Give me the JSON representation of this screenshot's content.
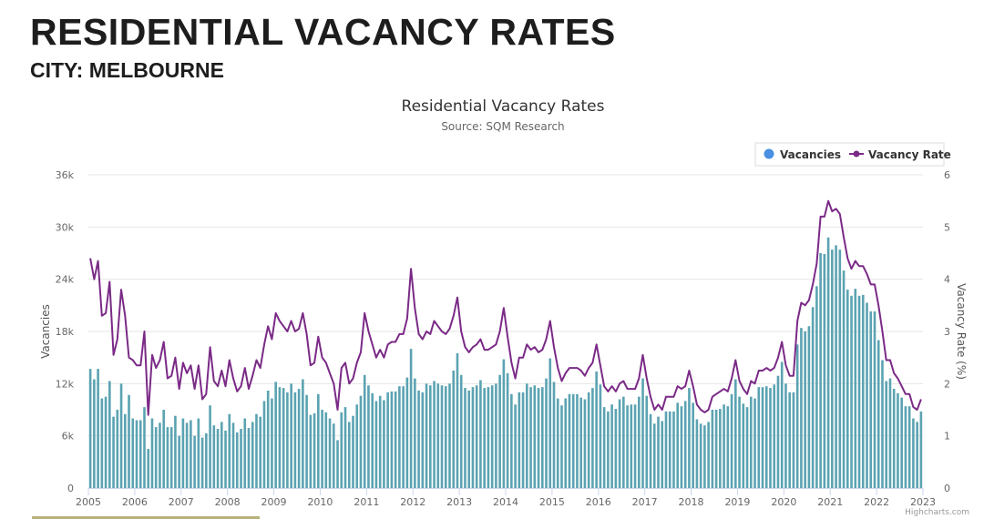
{
  "header": {
    "title": "RESIDENTIAL VACANCY RATES",
    "subtitle": "CITY: MELBOURNE"
  },
  "chart_data": {
    "type": "bar+line",
    "title": "Residential Vacancy Rates",
    "subtitle": "Source: SQM Research",
    "xlabel": "",
    "ylabel": "Vacancies",
    "y2label": "Vacancy Rate (%)",
    "xlim": [
      2005,
      2023
    ],
    "ylim": [
      0,
      36000
    ],
    "y2lim": [
      0,
      6
    ],
    "x_ticks": [
      "2005",
      "2006",
      "2007",
      "2008",
      "2009",
      "2010",
      "2011",
      "2012",
      "2013",
      "2014",
      "2015",
      "2016",
      "2017",
      "2018",
      "2019",
      "2020",
      "2021",
      "2022",
      "2023"
    ],
    "y_ticks": [
      "0",
      "6k",
      "12k",
      "18k",
      "24k",
      "30k",
      "36k"
    ],
    "y2_ticks": [
      "0",
      "1",
      "2",
      "3",
      "4",
      "5",
      "6"
    ],
    "start": "2005-01",
    "frequency": "monthly",
    "grid": true,
    "legend": {
      "placement": "top-right",
      "items": [
        "Vacancies",
        "Vacancy Rate"
      ]
    },
    "credits": "Highcharts.com",
    "colors": {
      "bars": "#5ba3b2",
      "line": "#7a2a86",
      "legend_dot": "#4a90e2"
    },
    "series": [
      {
        "name": "Vacancies",
        "type": "bar",
        "unit": "thousands",
        "values": [
          13.7,
          12.5,
          13.7,
          10.3,
          10.5,
          12.3,
          8.2,
          9,
          12,
          8.5,
          10.7,
          8,
          7.8,
          7.8,
          9.3,
          4.5,
          8,
          7,
          7.5,
          9,
          7,
          7,
          8.3,
          6,
          8,
          7.5,
          7.8,
          6,
          8,
          5.8,
          6.3,
          9.5,
          7.2,
          6.8,
          7.6,
          6.6,
          8.5,
          7.5,
          6.4,
          6.8,
          8,
          6.9,
          7.6,
          8.5,
          8.2,
          10,
          11.2,
          10.3,
          12.2,
          11.6,
          11.5,
          11,
          12,
          11,
          11.4,
          12.5,
          10.7,
          8.4,
          8.6,
          10.8,
          9,
          8.7,
          8,
          7.4,
          5.5,
          8.7,
          9.3,
          7.6,
          8.3,
          9.6,
          10.6,
          13,
          11.8,
          10.9,
          10,
          10.6,
          10.1,
          11,
          11.1,
          11.1,
          11.7,
          11.7,
          12.7,
          16,
          12.6,
          11.2,
          11,
          12,
          11.8,
          12.3,
          12,
          11.8,
          11.7,
          12,
          13.5,
          15.5,
          13,
          11.5,
          11.2,
          11.6,
          11.8,
          12.4,
          11.5,
          11.6,
          11.8,
          12,
          13,
          14.8,
          13.2,
          10.8,
          9.6,
          11,
          11,
          12,
          11.6,
          11.8,
          11.5,
          11.6,
          12.6,
          14.9,
          12.2,
          10.3,
          9.5,
          10.3,
          10.8,
          10.8,
          10.8,
          10.4,
          10.2,
          11,
          11.5,
          13.4,
          11.9,
          9.3,
          8.8,
          9.6,
          9.1,
          10.2,
          10.5,
          9.5,
          9.6,
          9.6,
          10.5,
          12.6,
          10.6,
          8.5,
          7.4,
          8.2,
          7.7,
          8.8,
          8.8,
          8.8,
          9.8,
          9.4,
          10,
          11.5,
          9.8,
          7.9,
          7.4,
          7.2,
          7.6,
          9,
          9,
          9.1,
          9.6,
          9.4,
          10.8,
          12.5,
          10.5,
          9.7,
          9.3,
          10.5,
          10.3,
          11.6,
          11.6,
          11.7,
          11.5,
          11.9,
          12.9,
          14.5,
          12,
          11,
          11,
          16.5,
          18.4,
          18,
          18.6,
          20.8,
          23.2,
          27,
          26.9,
          28.8,
          27.4,
          27.9,
          27.4,
          25,
          22.8,
          22.1,
          22.9,
          22.1,
          22.2,
          21.3,
          20.3,
          20.3,
          17,
          14.7,
          12.3,
          12.6,
          11.4,
          10.9,
          10.4,
          9.4,
          9.4,
          8,
          7.6,
          8.8
        ]
      },
      {
        "name": "Vacancy Rate",
        "type": "line",
        "unit": "%",
        "values": [
          4.4,
          4.0,
          4.35,
          3.3,
          3.35,
          3.95,
          2.55,
          2.85,
          3.8,
          3.3,
          2.5,
          2.45,
          2.35,
          2.35,
          3.0,
          1.4,
          2.55,
          2.3,
          2.45,
          2.8,
          2.1,
          2.15,
          2.5,
          1.9,
          2.4,
          2.2,
          2.35,
          1.9,
          2.35,
          1.7,
          1.8,
          2.7,
          2.05,
          1.95,
          2.25,
          1.95,
          2.45,
          2.1,
          1.85,
          1.95,
          2.3,
          1.9,
          2.15,
          2.45,
          2.3,
          2.75,
          3.1,
          2.85,
          3.35,
          3.2,
          3.1,
          3.0,
          3.2,
          3.0,
          3.05,
          3.35,
          2.95,
          2.35,
          2.4,
          2.9,
          2.5,
          2.4,
          2.2,
          2.0,
          1.5,
          2.3,
          2.4,
          2.0,
          2.1,
          2.4,
          2.6,
          3.35,
          3.0,
          2.75,
          2.5,
          2.65,
          2.5,
          2.75,
          2.8,
          2.8,
          2.95,
          2.95,
          3.25,
          4.2,
          3.45,
          2.95,
          2.85,
          3.0,
          2.95,
          3.2,
          3.1,
          3.0,
          2.95,
          3.05,
          3.3,
          3.65,
          3.0,
          2.7,
          2.6,
          2.7,
          2.75,
          2.85,
          2.65,
          2.65,
          2.7,
          2.75,
          3.0,
          3.45,
          2.9,
          2.4,
          2.1,
          2.5,
          2.5,
          2.75,
          2.65,
          2.7,
          2.6,
          2.65,
          2.85,
          3.2,
          2.7,
          2.3,
          2.05,
          2.2,
          2.3,
          2.3,
          2.3,
          2.25,
          2.15,
          2.3,
          2.4,
          2.75,
          2.35,
          1.95,
          1.85,
          1.95,
          1.85,
          2.0,
          2.05,
          1.9,
          1.9,
          1.9,
          2.1,
          2.55,
          2.1,
          1.75,
          1.5,
          1.6,
          1.5,
          1.75,
          1.75,
          1.75,
          1.95,
          1.9,
          1.95,
          2.25,
          1.95,
          1.6,
          1.5,
          1.45,
          1.5,
          1.75,
          1.8,
          1.85,
          1.9,
          1.85,
          2.1,
          2.45,
          2.05,
          1.9,
          1.8,
          2.05,
          2.0,
          2.25,
          2.25,
          2.3,
          2.25,
          2.3,
          2.5,
          2.8,
          2.35,
          2.15,
          2.15,
          3.2,
          3.55,
          3.5,
          3.6,
          3.9,
          4.3,
          5.2,
          5.2,
          5.5,
          5.3,
          5.35,
          5.25,
          4.8,
          4.4,
          4.2,
          4.35,
          4.25,
          4.25,
          4.1,
          3.9,
          3.9,
          3.5,
          3.0,
          2.45,
          2.45,
          2.2,
          2.1,
          1.95,
          1.8,
          1.8,
          1.55,
          1.5,
          1.7
        ]
      }
    ]
  }
}
